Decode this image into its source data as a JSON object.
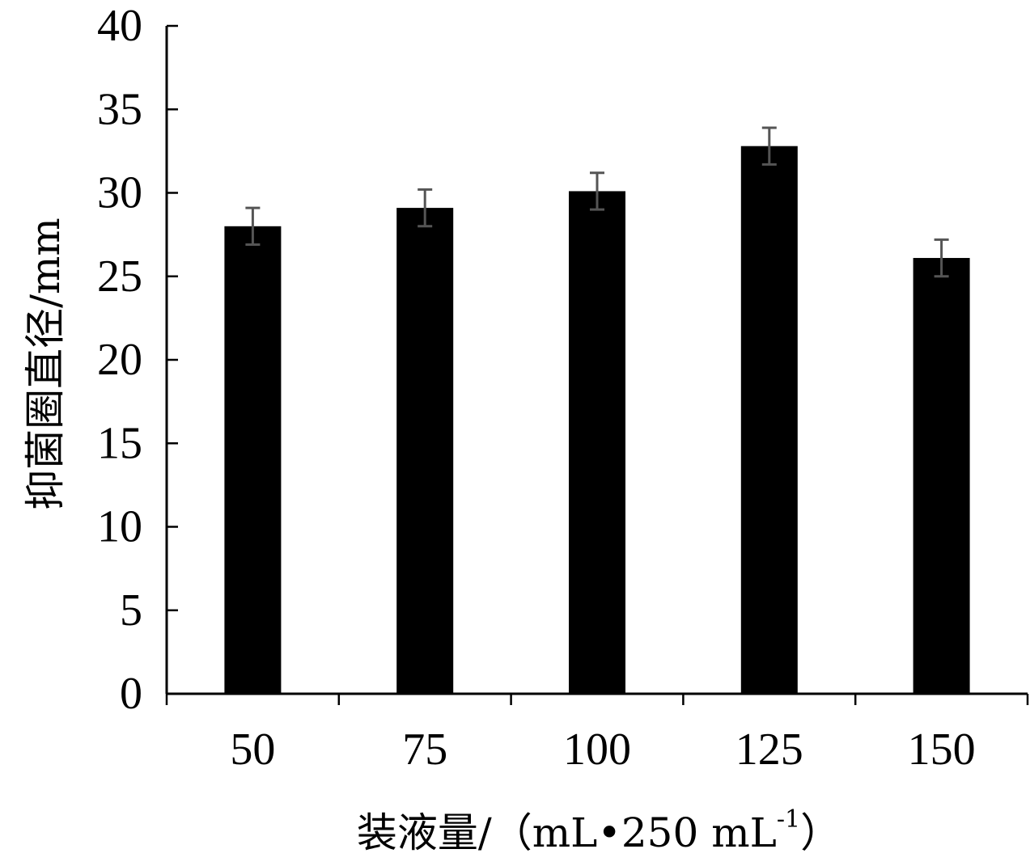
{
  "chart_data": {
    "type": "bar",
    "categories": [
      "50",
      "75",
      "100",
      "125",
      "150"
    ],
    "values": [
      28.0,
      29.1,
      30.1,
      32.8,
      26.1
    ],
    "errors": [
      1.1,
      1.1,
      1.1,
      1.1,
      1.1
    ],
    "xlabel": "装液量/（mL•250 mL",
    "xlabel_sup": "-1",
    "xlabel_close": "）",
    "ylabel": "抑菌圈直径/mm",
    "ylim": [
      0,
      40
    ],
    "yticks": [
      0,
      5,
      10,
      15,
      20,
      25,
      30,
      35,
      40
    ],
    "grid": false,
    "bar_color": "#000000",
    "error_color": "#555555"
  }
}
